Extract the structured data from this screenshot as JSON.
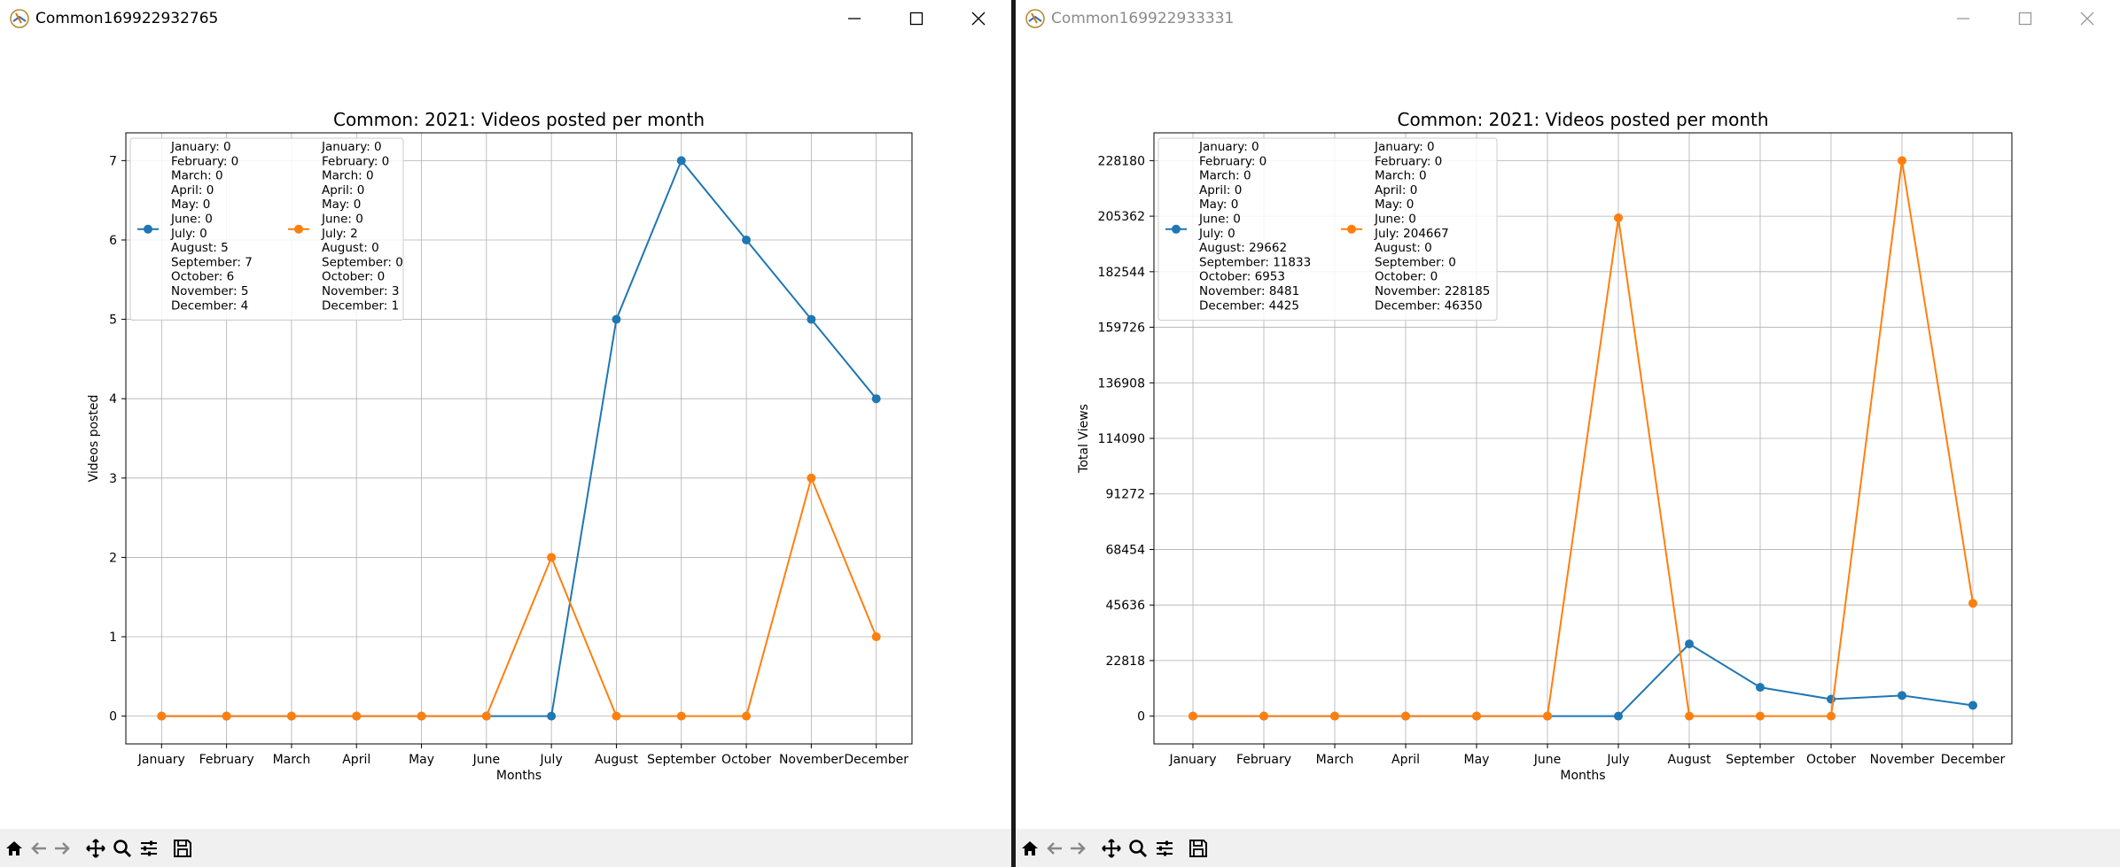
{
  "windows": [
    {
      "title": "Common169922932765",
      "active": true,
      "chart": {
        "type": "line",
        "title": "Common: 2021: Videos posted per month",
        "xlabel": "Months",
        "ylabel": "Videos posted",
        "categories": [
          "January",
          "February",
          "March",
          "April",
          "May",
          "June",
          "July",
          "August",
          "September",
          "October",
          "November",
          "December"
        ],
        "ylim": [
          -0.35,
          7.35
        ],
        "yticks": [
          0,
          1,
          2,
          3,
          4,
          5,
          6,
          7
        ],
        "yticklabels": [
          "0",
          "1",
          "2",
          "3",
          "4",
          "5",
          "6",
          "7"
        ],
        "grid": true,
        "legend_position": "upper left",
        "series": [
          {
            "color": "#1f77b4",
            "values": [
              0,
              0,
              0,
              0,
              0,
              0,
              0,
              5,
              7,
              6,
              5,
              4
            ],
            "legend_lines": [
              "January: 0",
              "February: 0",
              "March: 0",
              "April: 0",
              "May: 0",
              "June: 0",
              "July: 0",
              "August: 5",
              "September: 7",
              "October: 6",
              "November: 5",
              "December: 4"
            ]
          },
          {
            "color": "#ff7f0e",
            "values": [
              0,
              0,
              0,
              0,
              0,
              0,
              2,
              0,
              0,
              0,
              3,
              1
            ],
            "legend_lines": [
              "January: 0",
              "February: 0",
              "March: 0",
              "April: 0",
              "May: 0",
              "June: 0",
              "July: 2",
              "August: 0",
              "September: 0",
              "October: 0",
              "November: 3",
              "December: 1"
            ]
          }
        ]
      }
    },
    {
      "title": "Common169922933331",
      "active": false,
      "chart": {
        "type": "line",
        "title": "Common: 2021: Videos posted per month",
        "xlabel": "Months",
        "ylabel": "Total Views",
        "categories": [
          "January",
          "February",
          "March",
          "April",
          "May",
          "June",
          "July",
          "August",
          "September",
          "October",
          "November",
          "December"
        ],
        "ylim": [
          -11409,
          239594
        ],
        "yticks": [
          0,
          22818,
          45636,
          68454,
          91272,
          114090,
          136908,
          159726,
          182544,
          205362,
          228180
        ],
        "yticklabels": [
          "0",
          "22818",
          "45636",
          "68454",
          "91272",
          "114090",
          "136908",
          "159726",
          "182544",
          "205362",
          "228180"
        ],
        "grid": true,
        "legend_position": "upper left",
        "series": [
          {
            "color": "#1f77b4",
            "values": [
              0,
              0,
              0,
              0,
              0,
              0,
              0,
              29662,
              11833,
              6953,
              8481,
              4425
            ],
            "legend_lines": [
              "January: 0",
              "February: 0",
              "March: 0",
              "April: 0",
              "May: 0",
              "June: 0",
              "July: 0",
              "August: 29662",
              "September: 11833",
              "October: 6953",
              "November: 8481",
              "December: 4425"
            ]
          },
          {
            "color": "#ff7f0e",
            "values": [
              0,
              0,
              0,
              0,
              0,
              0,
              204667,
              0,
              0,
              0,
              228185,
              46350
            ],
            "legend_lines": [
              "January: 0",
              "February: 0",
              "March: 0",
              "April: 0",
              "May: 0",
              "June: 0",
              "July: 204667",
              "August: 0",
              "September: 0",
              "October: 0",
              "November: 228185",
              "December: 46350"
            ]
          }
        ]
      }
    }
  ],
  "chart_data": [
    {
      "type": "line",
      "title": "Common: 2021: Videos posted per month",
      "xlabel": "Months",
      "ylabel": "Videos posted",
      "categories": [
        "January",
        "February",
        "March",
        "April",
        "May",
        "June",
        "July",
        "August",
        "September",
        "October",
        "November",
        "December"
      ],
      "series": [
        {
          "values": [
            0,
            0,
            0,
            0,
            0,
            0,
            0,
            5,
            7,
            6,
            5,
            4
          ]
        },
        {
          "values": [
            0,
            0,
            0,
            0,
            0,
            0,
            2,
            0,
            0,
            0,
            3,
            1
          ]
        }
      ],
      "ylim": [
        -0.35,
        7.35
      ],
      "grid": true,
      "legend": "upper left"
    },
    {
      "type": "line",
      "title": "Common: 2021: Videos posted per month",
      "xlabel": "Months",
      "ylabel": "Total Views",
      "categories": [
        "January",
        "February",
        "March",
        "April",
        "May",
        "June",
        "July",
        "August",
        "September",
        "October",
        "November",
        "December"
      ],
      "series": [
        {
          "values": [
            0,
            0,
            0,
            0,
            0,
            0,
            0,
            29662,
            11833,
            6953,
            8481,
            4425
          ]
        },
        {
          "values": [
            0,
            0,
            0,
            0,
            0,
            0,
            204667,
            0,
            0,
            0,
            228185,
            46350
          ]
        }
      ],
      "ylim": [
        -11409,
        239594
      ],
      "grid": true,
      "legend": "upper left"
    }
  ],
  "toolbar_icons": [
    "home-icon",
    "back-arrow-icon",
    "forward-arrow-icon",
    "pan-icon",
    "zoom-icon",
    "configure-subplots-icon",
    "save-icon"
  ],
  "window_buttons": [
    "minimize-icon",
    "maximize-icon",
    "close-icon"
  ]
}
